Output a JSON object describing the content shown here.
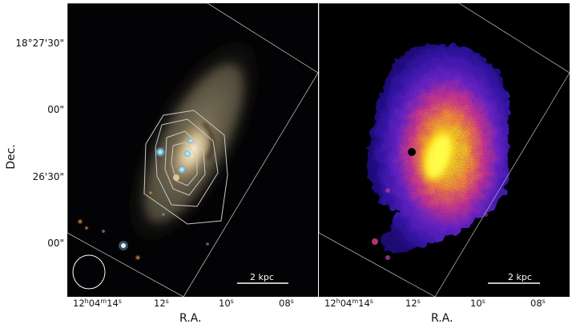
{
  "axes": {
    "y_title": "Dec.",
    "x_title": "R.A.",
    "y_ticks": [
      "18°27'30\"",
      "00\"",
      "26'30\"",
      "00\""
    ]
  },
  "left_panel": {
    "ra_ticks": [
      {
        "h": "12",
        "m": "04",
        "s": "14"
      },
      {
        "s": "12"
      },
      {
        "s": "10"
      },
      {
        "s": "08"
      }
    ],
    "scalebar_label": "2 kpc",
    "colors": {
      "outline": "#b8b8b8",
      "contours": "#c8c8c8"
    }
  },
  "right_panel": {
    "ra_ticks": [
      {
        "h": "12",
        "m": "04",
        "s": "14"
      },
      {
        "s": "12"
      },
      {
        "s": "10"
      },
      {
        "s": "08"
      }
    ],
    "scalebar_label": "2 kpc",
    "colors": {
      "colormap": [
        "#1a0a6e",
        "#4a1fc0",
        "#c02ba0",
        "#ff6a40",
        "#ffe810"
      ]
    }
  }
}
